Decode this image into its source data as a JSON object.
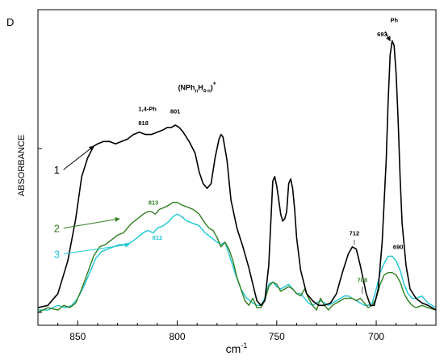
{
  "panel_label": "D",
  "chart_data": {
    "type": "line",
    "title": "",
    "xlabel": "cm",
    "xlabel_superscript": "-1",
    "ylabel": "ABSORBANCE",
    "xlim": [
      870,
      670
    ],
    "x_reversed": true,
    "x_ticks": [
      850,
      800,
      750,
      700
    ],
    "y_ticks_labeled": false,
    "grid": false,
    "legend": "none",
    "series": [
      {
        "name": "1",
        "color": "#000000",
        "points": [
          [
            870,
            0.02
          ],
          [
            865,
            0.03
          ],
          [
            860,
            0.08
          ],
          [
            855,
            0.22
          ],
          [
            851,
            0.4
          ],
          [
            848,
            0.58
          ],
          [
            845,
            0.66
          ],
          [
            842,
            0.71
          ],
          [
            840,
            0.72
          ],
          [
            837,
            0.73
          ],
          [
            834,
            0.73
          ],
          [
            831,
            0.72
          ],
          [
            828,
            0.73
          ],
          [
            825,
            0.74
          ],
          [
            822,
            0.76
          ],
          [
            819,
            0.77
          ],
          [
            816,
            0.76
          ],
          [
            813,
            0.76
          ],
          [
            810,
            0.77
          ],
          [
            807,
            0.78
          ],
          [
            805,
            0.79
          ],
          [
            803,
            0.79
          ],
          [
            801,
            0.8
          ],
          [
            799,
            0.79
          ],
          [
            797,
            0.77
          ],
          [
            794,
            0.73
          ],
          [
            791,
            0.68
          ],
          [
            789,
            0.6
          ],
          [
            787,
            0.55
          ],
          [
            785,
            0.53
          ],
          [
            783,
            0.55
          ],
          [
            781,
            0.66
          ],
          [
            779,
            0.74
          ],
          [
            778,
            0.76
          ],
          [
            777,
            0.75
          ],
          [
            775,
            0.65
          ],
          [
            773,
            0.48
          ],
          [
            770,
            0.36
          ],
          [
            767,
            0.28
          ],
          [
            764,
            0.19
          ],
          [
            762,
            0.12
          ],
          [
            760,
            0.05
          ],
          [
            758,
            0.03
          ],
          [
            756,
            0.05
          ],
          [
            754,
            0.2
          ],
          [
            753,
            0.38
          ],
          [
            752,
            0.56
          ],
          [
            751,
            0.58
          ],
          [
            750,
            0.54
          ],
          [
            749,
            0.48
          ],
          [
            748,
            0.42
          ],
          [
            747,
            0.39
          ],
          [
            746,
            0.4
          ],
          [
            745,
            0.43
          ],
          [
            744,
            0.55
          ],
          [
            743,
            0.57
          ],
          [
            742,
            0.53
          ],
          [
            741,
            0.44
          ],
          [
            740,
            0.32
          ],
          [
            738,
            0.18
          ],
          [
            735,
            0.08
          ],
          [
            732,
            0.05
          ],
          [
            729,
            0.03
          ],
          [
            726,
            0.03
          ],
          [
            723,
            0.04
          ],
          [
            720,
            0.08
          ],
          [
            717,
            0.17
          ],
          [
            714,
            0.25
          ],
          [
            712,
            0.28
          ],
          [
            710,
            0.27
          ],
          [
            708,
            0.2
          ],
          [
            705,
            0.08
          ],
          [
            703,
            0.03
          ],
          [
            701,
            0.03
          ],
          [
            699,
            0.1
          ],
          [
            697,
            0.3
          ],
          [
            695,
            0.65
          ],
          [
            694,
            0.9
          ],
          [
            693,
            1.1
          ],
          [
            692,
            1.16
          ],
          [
            691,
            1.14
          ],
          [
            690,
            1.02
          ],
          [
            689,
            0.82
          ],
          [
            688,
            0.58
          ],
          [
            687,
            0.38
          ],
          [
            685,
            0.2
          ],
          [
            683,
            0.1
          ],
          [
            680,
            0.06
          ],
          [
            677,
            0.04
          ],
          [
            674,
            0.03
          ],
          [
            670,
            0.01
          ]
        ]
      },
      {
        "name": "2",
        "color": "#2e7d1e",
        "points": [
          [
            870,
            0.0
          ],
          [
            865,
            0.02
          ],
          [
            860,
            0.01
          ],
          [
            857,
            0.03
          ],
          [
            854,
            0.02
          ],
          [
            851,
            0.04
          ],
          [
            848,
            0.1
          ],
          [
            845,
            0.17
          ],
          [
            842,
            0.24
          ],
          [
            839,
            0.28
          ],
          [
            836,
            0.29
          ],
          [
            833,
            0.31
          ],
          [
            830,
            0.33
          ],
          [
            827,
            0.34
          ],
          [
            825,
            0.36
          ],
          [
            823,
            0.38
          ],
          [
            820,
            0.4
          ],
          [
            817,
            0.42
          ],
          [
            815,
            0.43
          ],
          [
            813,
            0.43
          ],
          [
            811,
            0.42
          ],
          [
            809,
            0.44
          ],
          [
            806,
            0.45
          ],
          [
            804,
            0.46
          ],
          [
            802,
            0.47
          ],
          [
            800,
            0.47
          ],
          [
            798,
            0.46
          ],
          [
            795,
            0.45
          ],
          [
            792,
            0.44
          ],
          [
            789,
            0.42
          ],
          [
            786,
            0.38
          ],
          [
            784,
            0.36
          ],
          [
            782,
            0.35
          ],
          [
            780,
            0.32
          ],
          [
            778,
            0.28
          ],
          [
            776,
            0.3
          ],
          [
            774,
            0.27
          ],
          [
            772,
            0.22
          ],
          [
            770,
            0.15
          ],
          [
            768,
            0.1
          ],
          [
            766,
            0.05
          ],
          [
            764,
            0.03
          ],
          [
            762,
            0.06
          ],
          [
            760,
            0.02
          ],
          [
            758,
            0.02
          ],
          [
            756,
            0.05
          ],
          [
            754,
            0.11
          ],
          [
            752,
            0.13
          ],
          [
            750,
            0.12
          ],
          [
            748,
            0.09
          ],
          [
            746,
            0.1
          ],
          [
            744,
            0.11
          ],
          [
            742,
            0.1
          ],
          [
            740,
            0.08
          ],
          [
            738,
            0.07
          ],
          [
            736,
            0.1
          ],
          [
            734,
            0.06
          ],
          [
            732,
            0.03
          ],
          [
            730,
            0.01
          ],
          [
            728,
            0.06
          ],
          [
            726,
            0.03
          ],
          [
            724,
            0.01
          ],
          [
            722,
            0.03
          ],
          [
            720,
            0.04
          ],
          [
            718,
            0.05
          ],
          [
            716,
            0.06
          ],
          [
            714,
            0.06
          ],
          [
            712,
            0.06
          ],
          [
            710,
            0.05
          ],
          [
            708,
            0.06
          ],
          [
            706,
            0.04
          ],
          [
            704,
            0.02
          ],
          [
            702,
            0.03
          ],
          [
            700,
            0.06
          ],
          [
            698,
            0.12
          ],
          [
            696,
            0.16
          ],
          [
            694,
            0.17
          ],
          [
            692,
            0.17
          ],
          [
            690,
            0.16
          ],
          [
            688,
            0.13
          ],
          [
            686,
            0.08
          ],
          [
            684,
            0.05
          ],
          [
            682,
            0.03
          ],
          [
            680,
            0.02
          ],
          [
            677,
            0.03
          ],
          [
            674,
            0.02
          ],
          [
            670,
            0.01
          ]
        ]
      },
      {
        "name": "3",
        "color": "#1cc6d6",
        "points": [
          [
            870,
            0.01
          ],
          [
            865,
            0.01
          ],
          [
            860,
            0.03
          ],
          [
            856,
            0.02
          ],
          [
            853,
            0.03
          ],
          [
            850,
            0.06
          ],
          [
            847,
            0.11
          ],
          [
            844,
            0.17
          ],
          [
            841,
            0.23
          ],
          [
            838,
            0.26
          ],
          [
            835,
            0.27
          ],
          [
            832,
            0.28
          ],
          [
            829,
            0.29
          ],
          [
            826,
            0.29
          ],
          [
            823,
            0.3
          ],
          [
            820,
            0.32
          ],
          [
            817,
            0.34
          ],
          [
            815,
            0.35
          ],
          [
            812,
            0.34
          ],
          [
            810,
            0.36
          ],
          [
            807,
            0.37
          ],
          [
            804,
            0.39
          ],
          [
            802,
            0.41
          ],
          [
            800,
            0.42
          ],
          [
            798,
            0.41
          ],
          [
            795,
            0.39
          ],
          [
            792,
            0.38
          ],
          [
            789,
            0.37
          ],
          [
            786,
            0.34
          ],
          [
            783,
            0.32
          ],
          [
            780,
            0.3
          ],
          [
            778,
            0.29
          ],
          [
            776,
            0.3
          ],
          [
            774,
            0.25
          ],
          [
            771,
            0.17
          ],
          [
            768,
            0.1
          ],
          [
            765,
            0.06
          ],
          [
            762,
            0.04
          ],
          [
            760,
            0.03
          ],
          [
            758,
            0.03
          ],
          [
            756,
            0.06
          ],
          [
            754,
            0.12
          ],
          [
            752,
            0.13
          ],
          [
            750,
            0.11
          ],
          [
            748,
            0.1
          ],
          [
            746,
            0.11
          ],
          [
            744,
            0.12
          ],
          [
            742,
            0.1
          ],
          [
            740,
            0.08
          ],
          [
            738,
            0.08
          ],
          [
            736,
            0.06
          ],
          [
            734,
            0.04
          ],
          [
            732,
            0.03
          ],
          [
            730,
            0.04
          ],
          [
            728,
            0.05
          ],
          [
            726,
            0.04
          ],
          [
            724,
            0.03
          ],
          [
            722,
            0.04
          ],
          [
            720,
            0.05
          ],
          [
            718,
            0.06
          ],
          [
            716,
            0.07
          ],
          [
            714,
            0.07
          ],
          [
            712,
            0.06
          ],
          [
            710,
            0.05
          ],
          [
            708,
            0.04
          ],
          [
            706,
            0.03
          ],
          [
            704,
            0.03
          ],
          [
            702,
            0.04
          ],
          [
            700,
            0.1
          ],
          [
            698,
            0.17
          ],
          [
            696,
            0.21
          ],
          [
            694,
            0.24
          ],
          [
            692,
            0.24
          ],
          [
            690,
            0.22
          ],
          [
            688,
            0.18
          ],
          [
            686,
            0.12
          ],
          [
            684,
            0.08
          ],
          [
            682,
            0.06
          ],
          [
            680,
            0.06
          ],
          [
            677,
            0.07
          ],
          [
            674,
            0.04
          ],
          [
            670,
            0.02
          ]
        ]
      }
    ],
    "annotations": [
      {
        "text": "1,4-Ph",
        "x": 815,
        "y": 0.86,
        "color": "#000000"
      },
      {
        "text": "(NPh",
        "sub": "n",
        "mid": "H",
        "sub2": "4-n",
        "tail": ")",
        "sup": "+",
        "x": 790,
        "y": 0.95,
        "color": "#000000"
      },
      {
        "text": "818",
        "x": 817,
        "y": 0.8,
        "color": "#000000"
      },
      {
        "text": "801",
        "x": 801,
        "y": 0.85,
        "color": "#000000"
      },
      {
        "text": "813",
        "x": 812,
        "y": 0.46,
        "color": "#2e7d1e"
      },
      {
        "text": "812",
        "x": 810,
        "y": 0.31,
        "color": "#1cc6d6"
      },
      {
        "text": "712",
        "x": 711,
        "y": 0.33,
        "color": "#000000"
      },
      {
        "text": "708",
        "x": 707,
        "y": 0.13,
        "color": "#2e7d1e"
      },
      {
        "text": "690",
        "x": 689,
        "y": 0.27,
        "color": "#000000"
      },
      {
        "text": "693",
        "x": 697,
        "y": 1.18,
        "color": "#000000"
      },
      {
        "text": "Ph",
        "x": 691,
        "y": 1.24,
        "color": "#000000"
      }
    ],
    "curve_labels": [
      {
        "text": "1",
        "series": "1",
        "color": "#000000",
        "arrow_to": [
          842,
          0.71
        ]
      },
      {
        "text": "2",
        "series": "2",
        "color": "#2e7d1e",
        "arrow_to": [
          829,
          0.4
        ]
      },
      {
        "text": "3",
        "series": "3",
        "color": "#1cc6d6",
        "arrow_to": [
          824,
          0.29
        ]
      }
    ]
  }
}
